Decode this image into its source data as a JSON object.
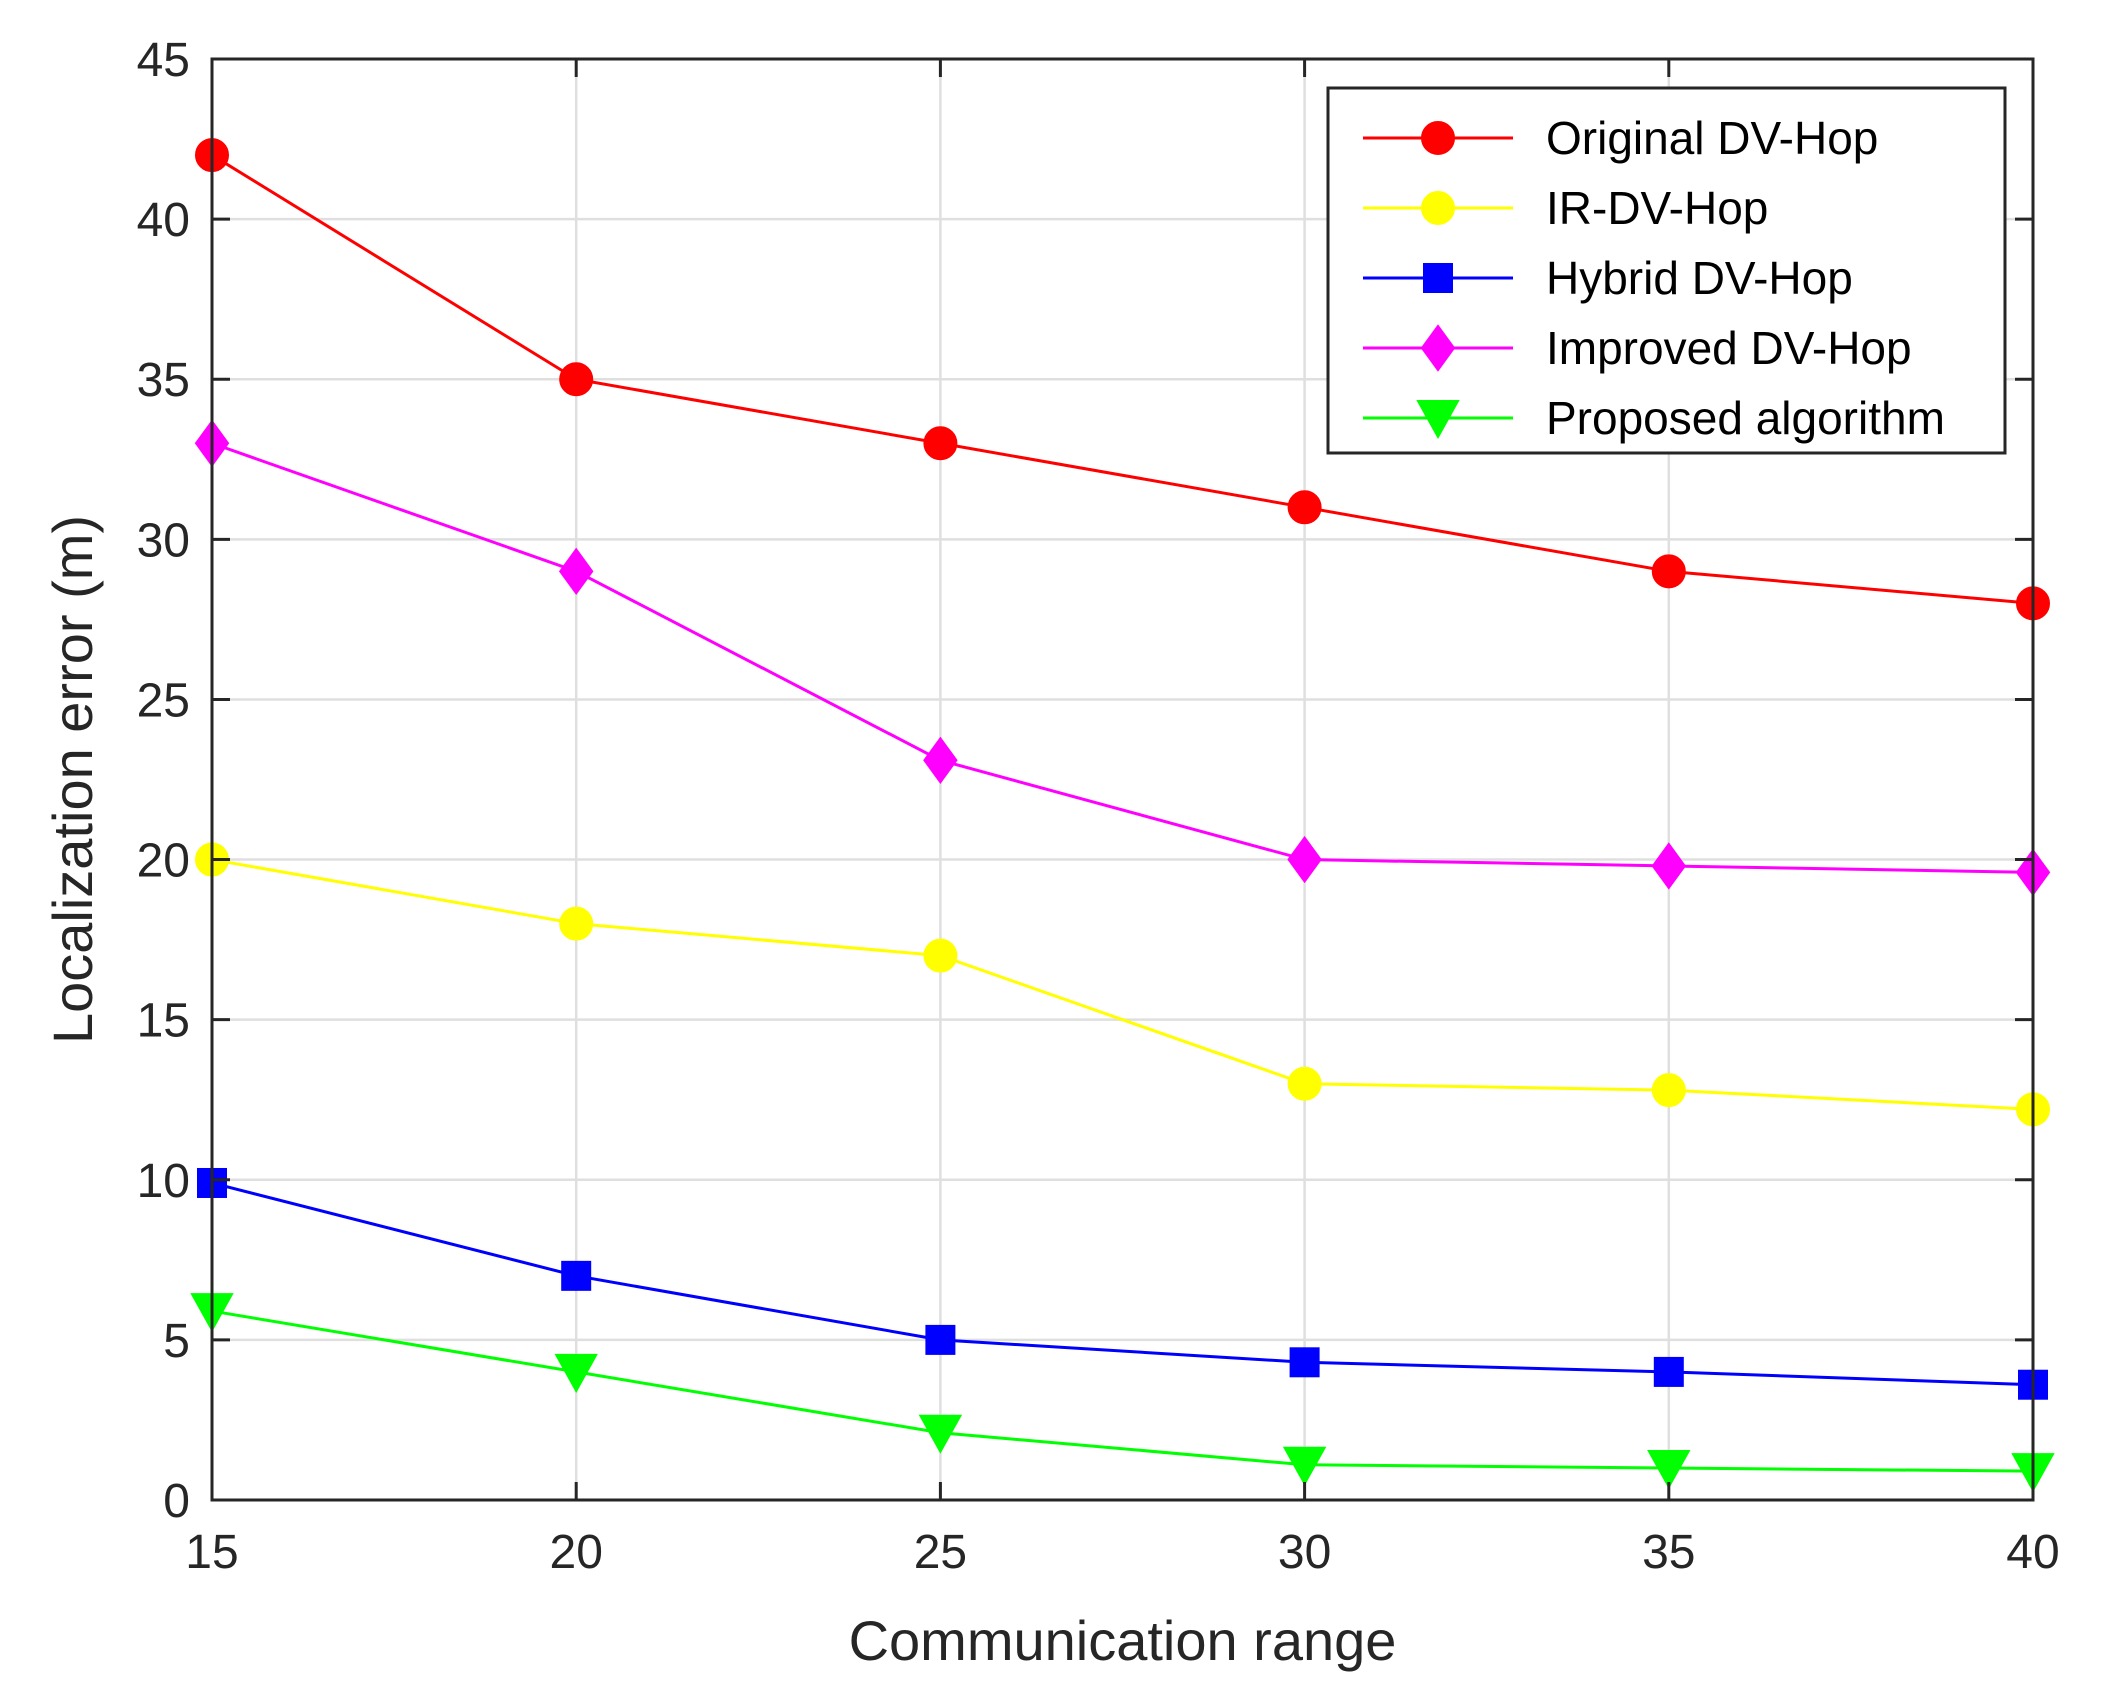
{
  "chart_data": {
    "type": "line",
    "title": "",
    "xlabel": "Communication range",
    "ylabel": "Localization error (m)",
    "x": [
      15,
      20,
      25,
      30,
      35,
      40
    ],
    "xlim": [
      15,
      40
    ],
    "ylim": [
      0,
      45
    ],
    "xticks": [
      15,
      20,
      25,
      30,
      35,
      40
    ],
    "yticks": [
      0,
      5,
      10,
      15,
      20,
      25,
      30,
      35,
      40,
      45
    ],
    "grid": true,
    "legend_position": "top-right",
    "series": [
      {
        "name": "Original DV-Hop",
        "color": "#ff0000",
        "marker": "circle",
        "values": [
          42,
          35,
          33,
          31,
          29,
          28
        ]
      },
      {
        "name": "IR-DV-Hop",
        "color": "#ffff00",
        "marker": "circle",
        "values": [
          20,
          18,
          17,
          13,
          12.8,
          12.2
        ]
      },
      {
        "name": "Hybrid DV-Hop",
        "color": "#0000ff",
        "marker": "square",
        "values": [
          9.9,
          7,
          5,
          4.3,
          4,
          3.6
        ]
      },
      {
        "name": "Improved DV-Hop",
        "color": "#ff00ff",
        "marker": "diamond",
        "values": [
          33,
          29,
          23.1,
          20,
          19.8,
          19.6
        ]
      },
      {
        "name": "Proposed algorithm",
        "color": "#00ff00",
        "marker": "triangle-down",
        "values": [
          5.9,
          4,
          2.1,
          1.1,
          1,
          0.9
        ]
      }
    ]
  }
}
